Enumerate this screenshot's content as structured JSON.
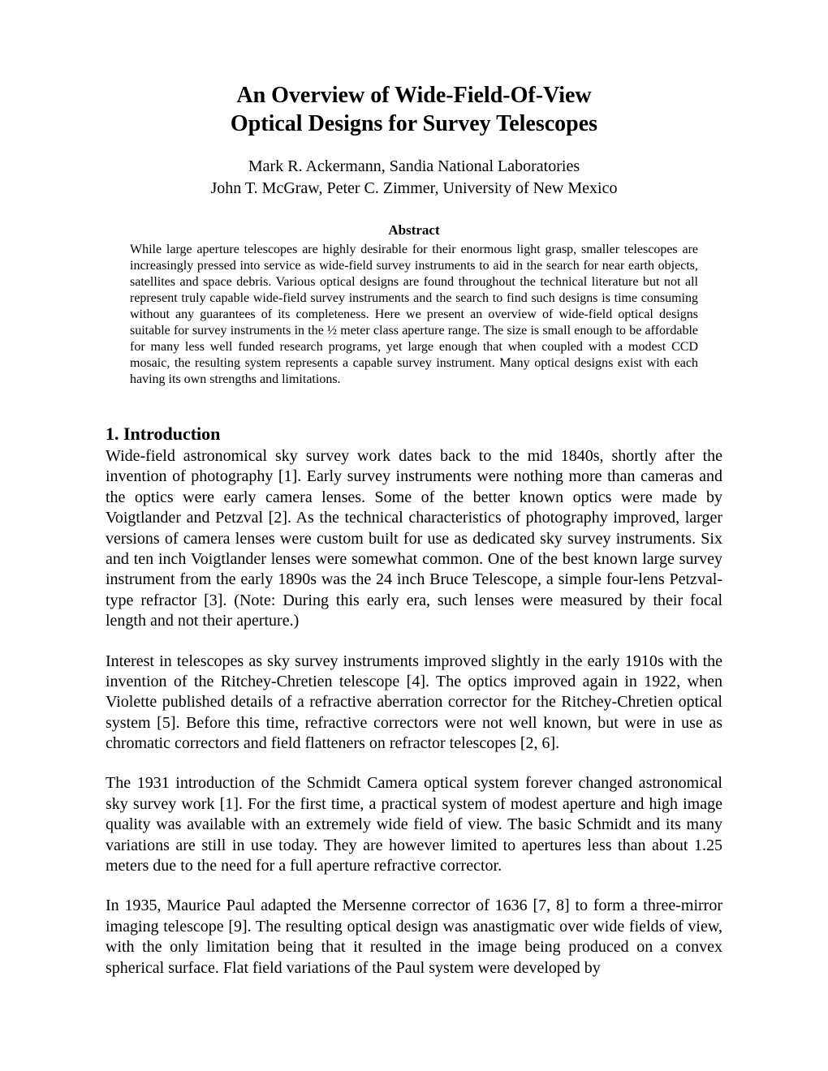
{
  "page": {
    "background_color": "#ffffff",
    "text_color": "#000000",
    "font_family": "Times New Roman"
  },
  "title": {
    "line1": "An Overview of Wide-Field-Of-View",
    "line2": "Optical Designs for Survey Telescopes",
    "fontsize": 28,
    "weight": "bold",
    "align": "center"
  },
  "authors": {
    "line1": "Mark R. Ackermann, Sandia National Laboratories",
    "line2": "John T. McGraw, Peter C. Zimmer, University of New Mexico",
    "fontsize": 20,
    "align": "center"
  },
  "abstract": {
    "heading": "Abstract",
    "heading_fontsize": 17,
    "heading_weight": "bold",
    "body": "While large aperture telescopes are highly desirable for their enormous light grasp, smaller telescopes are increasingly pressed into service as wide-field survey instruments to aid in the search for near earth objects, satellites and space debris.  Various optical designs are found throughout the technical literature but not all represent truly capable wide-field survey instruments and the search to find such designs is time consuming without any guarantees of its completeness.  Here we present an overview of wide-field optical designs suitable for survey instruments in the ½ meter class aperture range.  The size is small enough to be affordable for many less well funded research programs, yet large enough that when coupled with a modest CCD mosaic, the resulting system represents a capable survey instrument.  Many optical designs exist with each having its own strengths and limitations.",
    "body_fontsize": 16,
    "align": "justify"
  },
  "section1": {
    "heading": "1.  Introduction",
    "heading_fontsize": 22,
    "heading_weight": "bold",
    "paragraphs": [
      "Wide-field astronomical sky survey work dates back to the mid 1840s, shortly after the invention of photography [1].  Early survey instruments were nothing more than cameras and the optics were early camera lenses.  Some of the better known optics were made by Voigtlander and Petzval [2].  As the technical characteristics of photography improved, larger versions of camera lenses were custom built for use as dedicated sky survey instruments.  Six and ten inch Voigtlander lenses were somewhat common.  One of the best known large survey instrument from the early 1890s was the 24 inch Bruce Telescope, a simple four-lens Petzval-type refractor [3].  (Note:  During this early era, such lenses were measured by their focal length and not their aperture.)",
      "Interest in telescopes as sky survey instruments improved slightly in the early 1910s with the invention of the Ritchey-Chretien telescope [4].  The optics improved again in 1922, when Violette published details of a refractive aberration corrector for the Ritchey-Chretien optical system [5].  Before this time, refractive correctors were not well known, but were in use as chromatic correctors and field flatteners on refractor telescopes [2, 6].",
      "The 1931 introduction of the Schmidt Camera optical system forever changed astronomical sky survey work [1].  For the first time, a practical system of modest aperture and high image quality was available with an extremely wide field of view.  The basic Schmidt and its many variations are still in use today.  They are however limited to apertures less than about 1.25 meters due to the need for a full aperture refractive corrector.",
      "In 1935, Maurice Paul adapted the Mersenne corrector of 1636 [7, 8] to form a three-mirror imaging telescope [9].  The resulting optical design was anastigmatic over wide fields of view, with the only limitation being that it resulted in the image being produced on a convex spherical surface.  Flat field variations of the Paul system were developed by"
    ],
    "body_fontsize": 20,
    "align": "justify"
  }
}
